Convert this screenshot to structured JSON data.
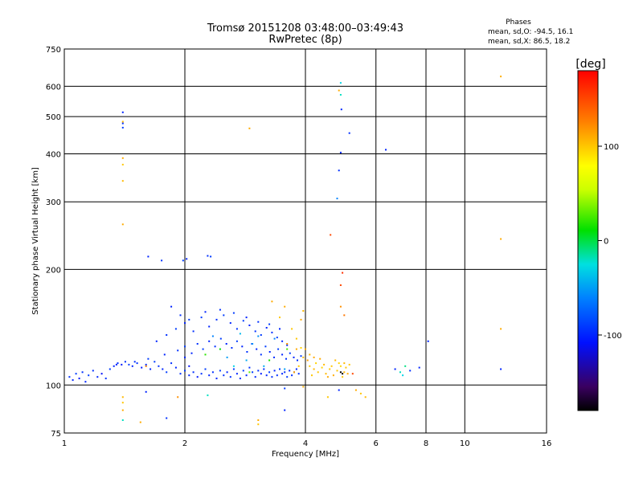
{
  "chart_data": {
    "type": "scatter",
    "title": "Tromsø 20151208 03:48:00–03:49:43",
    "subtitle": "RwPretec (8p)",
    "xlabel": "Frequency [MHz]",
    "ylabel": "Stationary phase Virtual Height [km]",
    "x_scale": "log",
    "y_scale": "log",
    "xlim": [
      1,
      16
    ],
    "ylim": [
      75,
      750
    ],
    "x_ticks": [
      1,
      2,
      4,
      6,
      8,
      10,
      16
    ],
    "y_ticks": [
      75,
      100,
      200,
      300,
      400,
      500,
      600,
      750
    ],
    "grid": true,
    "stats": {
      "heading": "Phases",
      "line_o": "mean, sd,O: -94.5, 16.1",
      "line_x": "mean, sd,X:  86.5, 18.2"
    },
    "colorbar": {
      "label": "[deg]",
      "range": [
        -180,
        180
      ],
      "ticks": [
        100,
        0,
        -100
      ],
      "tick_labels": [
        "100",
        "0",
        "-100"
      ]
    },
    "series": [
      {
        "points": [
          [
            1.03,
            105,
            -95
          ],
          [
            1.05,
            103,
            -100
          ],
          [
            1.07,
            107,
            -90
          ],
          [
            1.09,
            104,
            -105
          ],
          [
            1.11,
            108,
            -95
          ],
          [
            1.13,
            102,
            -100
          ],
          [
            1.15,
            106,
            -90
          ],
          [
            1.18,
            109,
            -95
          ],
          [
            1.21,
            105,
            -100
          ],
          [
            1.24,
            107,
            -110
          ],
          [
            1.27,
            104,
            -95
          ],
          [
            1.3,
            110,
            -90
          ],
          [
            1.33,
            112,
            -100
          ],
          [
            1.36,
            114,
            -95
          ],
          [
            1.39,
            113,
            -105
          ],
          [
            1.42,
            115,
            -95
          ],
          [
            1.45,
            113,
            -90
          ],
          [
            1.48,
            112,
            -100
          ],
          [
            1.52,
            114,
            -95
          ],
          [
            1.56,
            111,
            -105
          ],
          [
            1.6,
            113,
            -95
          ],
          [
            1.64,
            110,
            -100
          ],
          [
            1.68,
            115,
            -90
          ],
          [
            1.72,
            112,
            -95
          ],
          [
            1.76,
            110,
            -100
          ],
          [
            1.8,
            108,
            -90
          ],
          [
            1.85,
            114,
            -95
          ],
          [
            1.9,
            111,
            -100
          ],
          [
            1.95,
            107,
            -95
          ],
          [
            2.0,
            109,
            -90
          ],
          [
            2.05,
            106,
            -100
          ],
          [
            2.1,
            108,
            -95
          ],
          [
            2.15,
            105,
            -105
          ],
          [
            2.2,
            107,
            -95
          ],
          [
            2.25,
            110,
            -90
          ],
          [
            2.3,
            106,
            -100
          ],
          [
            2.35,
            108,
            -95
          ],
          [
            2.4,
            104,
            -100
          ],
          [
            2.45,
            109,
            -90
          ],
          [
            2.5,
            106,
            -95
          ],
          [
            2.55,
            108,
            -100
          ],
          [
            2.6,
            105,
            -95
          ],
          [
            2.65,
            110,
            -90
          ],
          [
            2.7,
            107,
            -100
          ],
          [
            2.75,
            104,
            -95
          ],
          [
            2.8,
            109,
            -90
          ],
          [
            2.85,
            106,
            -100
          ],
          [
            2.9,
            111,
            -95
          ],
          [
            2.95,
            108,
            -90
          ],
          [
            3.0,
            105,
            -100
          ],
          [
            3.05,
            109,
            -95
          ],
          [
            3.1,
            107,
            -105
          ],
          [
            3.15,
            110,
            -95
          ],
          [
            3.2,
            106,
            -100
          ],
          [
            3.25,
            108,
            -90
          ],
          [
            3.3,
            105,
            -95
          ],
          [
            3.35,
            109,
            -100
          ],
          [
            3.4,
            106,
            -95
          ],
          [
            3.45,
            110,
            -90
          ],
          [
            3.5,
            107,
            -100
          ],
          [
            3.55,
            108,
            -95
          ],
          [
            3.6,
            105,
            -90
          ],
          [
            3.65,
            109,
            -100
          ],
          [
            3.7,
            106,
            -95
          ],
          [
            3.75,
            108,
            -90
          ],
          [
            3.8,
            110,
            -100
          ],
          [
            3.85,
            107,
            -95
          ],
          [
            1.35,
            113,
            -100
          ],
          [
            1.5,
            115,
            -95
          ],
          [
            1.62,
            117,
            -90
          ],
          [
            1.78,
            120,
            -100
          ],
          [
            1.92,
            123,
            -95
          ],
          [
            2.0,
            126,
            -90
          ],
          [
            2.08,
            121,
            -100
          ],
          [
            2.15,
            128,
            -95
          ],
          [
            2.22,
            124,
            -90
          ],
          [
            2.3,
            130,
            -100
          ],
          [
            2.38,
            126,
            -95
          ],
          [
            2.46,
            132,
            -90
          ],
          [
            2.54,
            128,
            -100
          ],
          [
            2.62,
            125,
            -95
          ],
          [
            2.7,
            130,
            -90
          ],
          [
            2.78,
            126,
            -100
          ],
          [
            2.86,
            122,
            -95
          ],
          [
            2.94,
            128,
            -90
          ],
          [
            3.02,
            124,
            -100
          ],
          [
            3.1,
            120,
            -95
          ],
          [
            3.18,
            126,
            -90
          ],
          [
            3.26,
            122,
            -100
          ],
          [
            3.34,
            118,
            -95
          ],
          [
            3.42,
            124,
            -90
          ],
          [
            3.5,
            120,
            -100
          ],
          [
            3.58,
            117,
            -95
          ],
          [
            3.66,
            121,
            -90
          ],
          [
            3.74,
            118,
            -100
          ],
          [
            3.82,
            116,
            -95
          ],
          [
            3.9,
            119,
            -90
          ],
          [
            1.7,
            130,
            -100
          ],
          [
            1.8,
            135,
            -95
          ],
          [
            1.9,
            140,
            -90
          ],
          [
            2.0,
            145,
            -100
          ],
          [
            2.1,
            138,
            -95
          ],
          [
            2.2,
            150,
            -90
          ],
          [
            2.3,
            142,
            -100
          ],
          [
            2.4,
            148,
            -95
          ],
          [
            2.5,
            152,
            -90
          ],
          [
            2.6,
            145,
            -100
          ],
          [
            2.7,
            140,
            -95
          ],
          [
            2.8,
            147,
            -90
          ],
          [
            2.9,
            143,
            -100
          ],
          [
            3.0,
            138,
            -95
          ],
          [
            3.1,
            135,
            -90
          ],
          [
            3.2,
            141,
            -100
          ],
          [
            3.3,
            137,
            -95
          ],
          [
            3.4,
            133,
            -90
          ],
          [
            3.5,
            130,
            -100
          ],
          [
            3.6,
            127,
            -95
          ],
          [
            1.85,
            160,
            -100
          ],
          [
            1.95,
            152,
            -95
          ],
          [
            2.05,
            148,
            -90
          ],
          [
            2.25,
            155,
            -100
          ],
          [
            2.45,
            157,
            -95
          ],
          [
            2.65,
            154,
            -90
          ],
          [
            2.85,
            150,
            -100
          ],
          [
            3.05,
            146,
            -95
          ],
          [
            3.25,
            144,
            -90
          ],
          [
            3.45,
            140,
            -100
          ],
          [
            2.35,
            134,
            -60
          ],
          [
            2.55,
            118,
            -50
          ],
          [
            2.75,
            136,
            -40
          ],
          [
            2.95,
            128,
            -55
          ],
          [
            3.15,
            112,
            -45
          ],
          [
            3.35,
            132,
            -60
          ],
          [
            3.55,
            110,
            -50
          ],
          [
            2.65,
            112,
            -30
          ],
          [
            2.85,
            116,
            -45
          ],
          [
            3.05,
            134,
            -55
          ],
          [
            2.25,
            120,
            20
          ],
          [
            2.45,
            124,
            10
          ],
          [
            2.9,
            108,
            30
          ],
          [
            3.25,
            116,
            15
          ],
          [
            3.6,
            124,
            25
          ],
          [
            3.3,
            165,
            110
          ],
          [
            3.45,
            150,
            100
          ],
          [
            3.6,
            128,
            120
          ],
          [
            3.7,
            140,
            100
          ],
          [
            3.8,
            124,
            110
          ],
          [
            3.85,
            112,
            100
          ],
          [
            3.95,
            118,
            105
          ],
          [
            3.75,
            108,
            115
          ],
          [
            3.9,
            125,
            95
          ],
          [
            3.55,
            160,
            110
          ],
          [
            4.1,
            112,
            100
          ],
          [
            4.2,
            110,
            105
          ],
          [
            4.3,
            108,
            100
          ],
          [
            4.4,
            111,
            95
          ],
          [
            4.5,
            107,
            105
          ],
          [
            4.6,
            110,
            100
          ],
          [
            4.7,
            106,
            110
          ],
          [
            4.8,
            109,
            100
          ],
          [
            4.9,
            112,
            95
          ],
          [
            5.0,
            108,
            105
          ],
          [
            5.05,
            111,
            100
          ],
          [
            5.1,
            107,
            110
          ],
          [
            4.25,
            114,
            95
          ],
          [
            4.45,
            113,
            105
          ],
          [
            4.65,
            112,
            100
          ],
          [
            4.85,
            114,
            95
          ],
          [
            5.0,
            114,
            105
          ],
          [
            4.15,
            106,
            100
          ],
          [
            4.55,
            105,
            110
          ],
          [
            4.95,
            105,
            100
          ],
          [
            4.05,
            116,
            115
          ],
          [
            4.35,
            117,
            110
          ],
          [
            4.75,
            116,
            105
          ],
          [
            5.15,
            113,
            100
          ],
          [
            4.0,
            124,
            110
          ],
          [
            3.95,
            156,
            105
          ],
          [
            3.9,
            148,
            110
          ],
          [
            3.8,
            132,
            100
          ],
          [
            4.1,
            120,
            105
          ],
          [
            4.2,
            118,
            110
          ],
          [
            1.4,
            513,
            -100
          ],
          [
            1.4,
            480,
            -95
          ],
          [
            1.4,
            468,
            -90
          ],
          [
            1.4,
            485,
            105
          ],
          [
            1.4,
            390,
            110
          ],
          [
            1.4,
            375,
            100
          ],
          [
            1.4,
            340,
            105
          ],
          [
            1.4,
            262,
            110
          ],
          [
            1.62,
            216,
            -100
          ],
          [
            1.75,
            211,
            -95
          ],
          [
            1.98,
            211,
            -90
          ],
          [
            2.02,
            213,
            -100
          ],
          [
            2.28,
            217,
            -95
          ],
          [
            2.32,
            216,
            -90
          ],
          [
            2.9,
            466,
            110
          ],
          [
            4.62,
            246,
            150
          ],
          [
            4.85,
            585,
            110
          ],
          [
            4.9,
            612,
            -30
          ],
          [
            4.9,
            570,
            -20
          ],
          [
            4.92,
            522,
            -100
          ],
          [
            5.15,
            453,
            -95
          ],
          [
            4.9,
            403,
            -100
          ],
          [
            4.85,
            362,
            -95
          ],
          [
            4.8,
            306,
            -60
          ],
          [
            4.95,
            196,
            160
          ],
          [
            4.9,
            182,
            150
          ],
          [
            4.9,
            160,
            120
          ],
          [
            5.0,
            152,
            130
          ],
          [
            6.35,
            410,
            -100
          ],
          [
            12.3,
            636,
            110
          ],
          [
            12.3,
            240,
            110
          ],
          [
            12.3,
            140,
            110
          ],
          [
            12.3,
            110,
            -100
          ],
          [
            1.4,
            90,
            100
          ],
          [
            1.4,
            86,
            110
          ],
          [
            1.4,
            81,
            -20
          ],
          [
            1.4,
            93,
            105
          ],
          [
            1.55,
            80,
            110
          ],
          [
            1.6,
            96,
            -100
          ],
          [
            1.8,
            82,
            -95
          ],
          [
            1.92,
            93,
            120
          ],
          [
            2.28,
            94,
            -20
          ],
          [
            3.05,
            81,
            110
          ],
          [
            3.05,
            79,
            100
          ],
          [
            3.55,
            86,
            -100
          ],
          [
            3.55,
            98,
            -90
          ],
          [
            3.95,
            99,
            110
          ],
          [
            4.55,
            93,
            100
          ],
          [
            4.85,
            97,
            -100
          ],
          [
            4.9,
            108,
            -200
          ],
          [
            4.95,
            107,
            -210
          ],
          [
            5.35,
            97,
            110
          ],
          [
            5.5,
            95,
            100
          ],
          [
            5.65,
            93,
            105
          ],
          [
            5.25,
            107,
            150
          ],
          [
            6.7,
            110,
            -100
          ],
          [
            6.9,
            108,
            -20
          ],
          [
            7.0,
            106,
            -30
          ],
          [
            7.1,
            112,
            -10
          ],
          [
            7.3,
            109,
            -95
          ],
          [
            7.7,
            111,
            -100
          ],
          [
            8.1,
            130,
            -100
          ],
          [
            2.05,
            112,
            -110
          ],
          [
            2.0,
            118,
            -100
          ],
          [
            1.6,
            112,
            130
          ]
        ]
      }
    ]
  }
}
